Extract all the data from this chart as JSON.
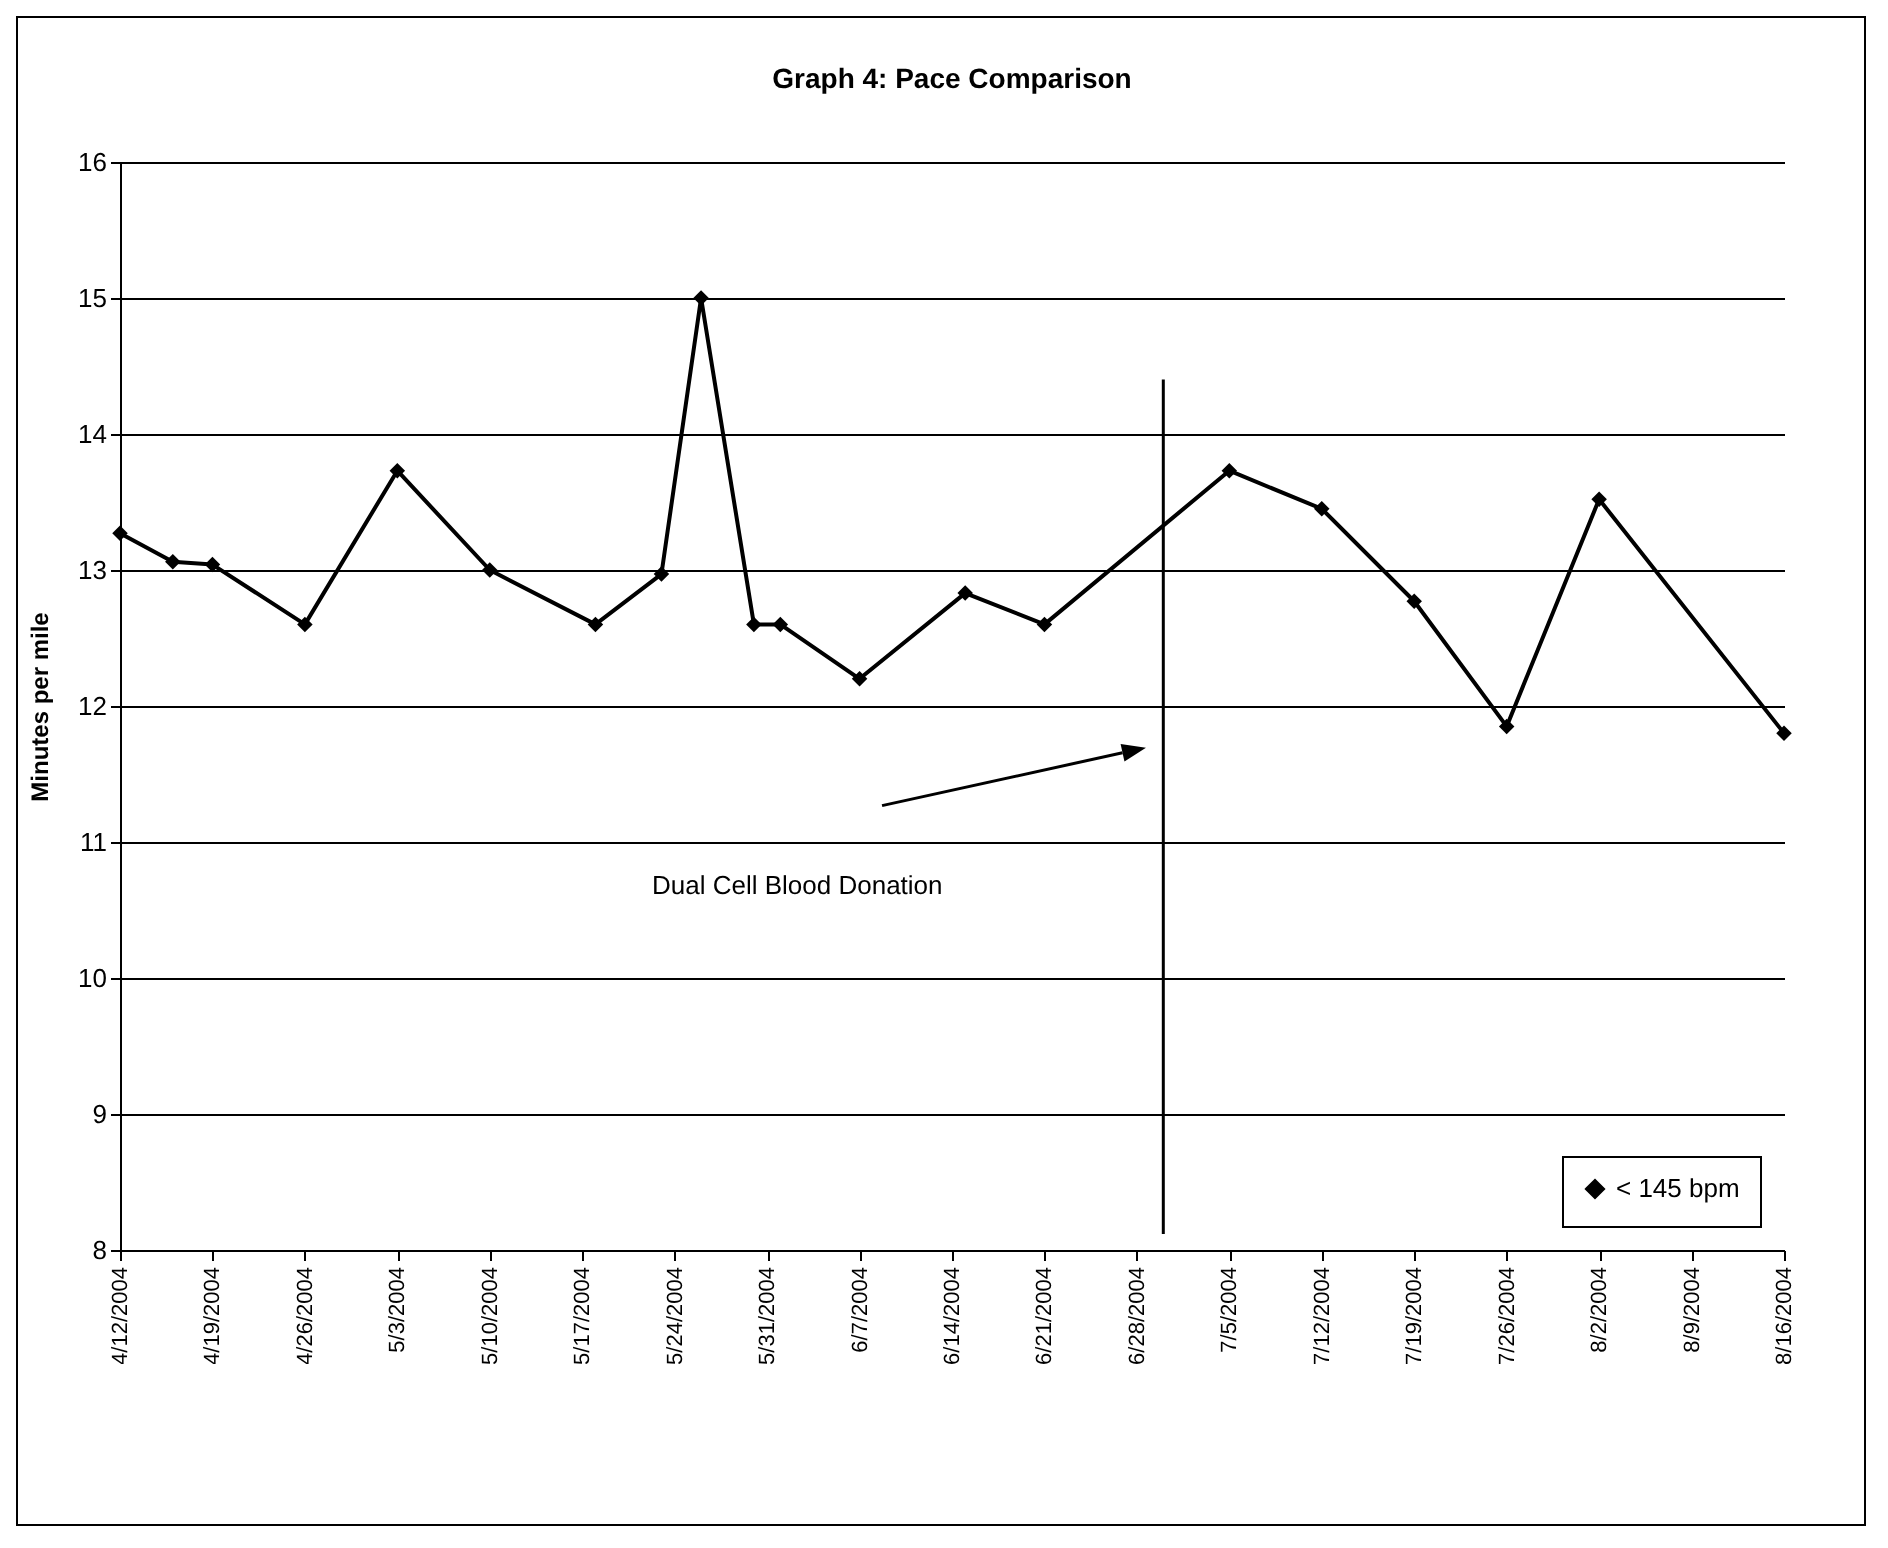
{
  "chart_data": {
    "type": "line",
    "title": "Graph 4: Pace Comparison",
    "ylabel": "Minutes per mile",
    "x": [
      "2004-04-12",
      "2004-04-16",
      "2004-04-19",
      "2004-04-26",
      "2004-05-03",
      "2004-05-10",
      "2004-05-18",
      "2004-05-23",
      "2004-05-26",
      "2004-05-30",
      "2004-06-01",
      "2004-06-07",
      "2004-06-15",
      "2004-06-21",
      "2004-07-05",
      "2004-07-12",
      "2004-07-19",
      "2004-07-26",
      "2004-08-02",
      "2004-08-16"
    ],
    "series": [
      {
        "name": "< 145 bpm",
        "color": "#000000",
        "values": [
          13.27,
          13.06,
          13.04,
          12.6,
          13.73,
          13.0,
          12.6,
          12.97,
          15.0,
          12.6,
          12.6,
          12.2,
          12.83,
          12.6,
          13.73,
          13.45,
          12.77,
          11.85,
          13.52,
          11.8
        ]
      }
    ],
    "xlim": [
      "2004-04-12",
      "2004-08-16"
    ],
    "xticks": [
      {
        "value": "2004-04-12",
        "label": "4/12/2004"
      },
      {
        "value": "2004-04-19",
        "label": "4/19/2004"
      },
      {
        "value": "2004-04-26",
        "label": "4/26/2004"
      },
      {
        "value": "2004-05-03",
        "label": "5/3/2004"
      },
      {
        "value": "2004-05-10",
        "label": "5/10/2004"
      },
      {
        "value": "2004-05-17",
        "label": "5/17/2004"
      },
      {
        "value": "2004-05-24",
        "label": "5/24/2004"
      },
      {
        "value": "2004-05-31",
        "label": "5/31/2004"
      },
      {
        "value": "2004-06-07",
        "label": "6/7/2004"
      },
      {
        "value": "2004-06-14",
        "label": "6/14/2004"
      },
      {
        "value": "2004-06-21",
        "label": "6/21/2004"
      },
      {
        "value": "2004-06-28",
        "label": "6/28/2004"
      },
      {
        "value": "2004-07-05",
        "label": "7/5/2004"
      },
      {
        "value": "2004-07-12",
        "label": "7/12/2004"
      },
      {
        "value": "2004-07-19",
        "label": "7/19/2004"
      },
      {
        "value": "2004-07-26",
        "label": "7/26/2004"
      },
      {
        "value": "2004-08-02",
        "label": "8/2/2004"
      },
      {
        "value": "2004-08-09",
        "label": "8/9/2004"
      },
      {
        "value": "2004-08-16",
        "label": "8/16/2004"
      }
    ],
    "ylim": [
      8,
      16
    ],
    "yticks": [
      8,
      9,
      10,
      11,
      12,
      13,
      14,
      15,
      16
    ],
    "ref_lines": [
      {
        "axis": "x",
        "value": "2004-06-30",
        "color": "#000000"
      }
    ],
    "annotations": [
      "Dual Cell Blood Donation"
    ],
    "grid": "y",
    "legend": "bottom right",
    "marker": "diamond",
    "line_style": "solid"
  }
}
